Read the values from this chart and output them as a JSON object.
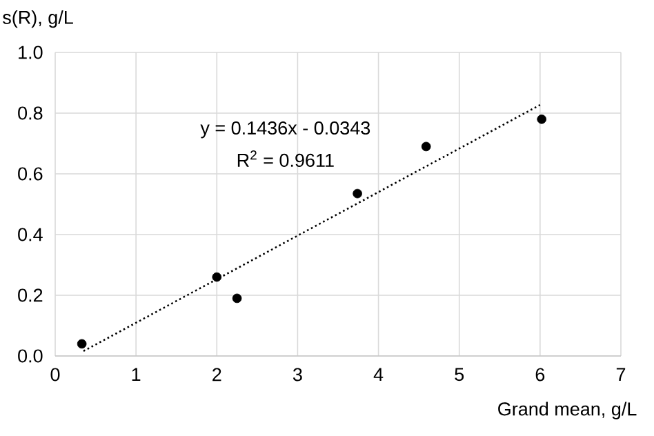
{
  "chart_data": {
    "type": "scatter",
    "xlabel": "Grand mean, g/L",
    "ylabel": "s(R), g/L",
    "annotations": [
      "y = 0.1436x - 0.0343",
      "R$^{2}$ = 0.9611"
    ],
    "xlim": [
      0,
      7
    ],
    "ylim": [
      0,
      1.0
    ],
    "xticks": [
      0,
      1,
      2,
      3,
      4,
      5,
      6,
      7
    ],
    "yticks": [
      {
        "value": 0,
        "label": "0.0"
      },
      {
        "value": 0.2,
        "label": "0.2"
      },
      {
        "value": 0.4,
        "label": "0.4"
      },
      {
        "value": 0.6,
        "label": "0.6"
      },
      {
        "value": 0.8,
        "label": "0.8"
      },
      {
        "value": 1.0,
        "label": "1.0"
      }
    ],
    "grid": true,
    "series": [
      {
        "color": "#000000",
        "marker": "circle",
        "x": [
          0.33,
          2.0,
          2.25,
          3.74,
          4.59,
          6.02
        ],
        "values": [
          0.04,
          0.26,
          0.19,
          0.535,
          0.69,
          0.78
        ]
      },
      {
        "type": "line",
        "color": "#000000",
        "marker": "none",
        "line_style": "dotted",
        "x": [
          0.35,
          6.0
        ],
        "values": [
          0.016,
          0.827
        ]
      }
    ]
  }
}
